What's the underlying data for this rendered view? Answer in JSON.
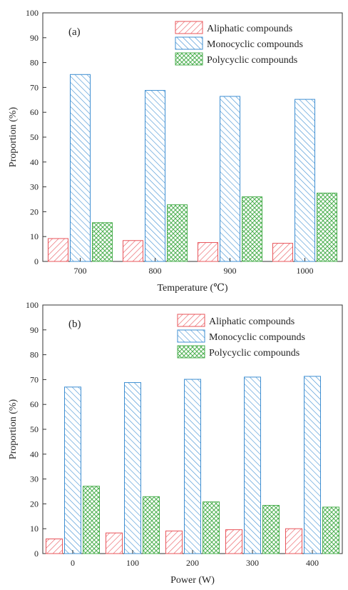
{
  "chart_data": [
    {
      "type": "bar",
      "panel_label": "(a)",
      "xlabel": "Temperature (℃)",
      "ylabel": "Proportion (%)",
      "ylim": [
        0,
        100
      ],
      "yticks": [
        0,
        10,
        20,
        30,
        40,
        50,
        60,
        70,
        80,
        90,
        100
      ],
      "categories": [
        "700",
        "800",
        "900",
        "1000"
      ],
      "legend_position": "top-right",
      "series": [
        {
          "name": "Aliphatic compounds",
          "color": "#e8545a",
          "hatch": "forward-diagonal",
          "values": [
            9.2,
            8.4,
            7.6,
            7.3
          ]
        },
        {
          "name": "Monocyclic compounds",
          "color": "#3f8fd2",
          "hatch": "back-diagonal",
          "values": [
            75.2,
            68.8,
            66.4,
            65.2
          ]
        },
        {
          "name": "Polycyclic compounds",
          "color": "#4caf50",
          "hatch": "crosshatch",
          "values": [
            15.6,
            22.8,
            26.0,
            27.5
          ]
        }
      ]
    },
    {
      "type": "bar",
      "panel_label": "(b)",
      "xlabel": "Power (W)",
      "ylabel": "Proportion (%)",
      "ylim": [
        0,
        100
      ],
      "yticks": [
        0,
        10,
        20,
        30,
        40,
        50,
        60,
        70,
        80,
        90,
        100
      ],
      "categories": [
        "0",
        "100",
        "200",
        "300",
        "400"
      ],
      "legend_position": "top-right",
      "series": [
        {
          "name": "Aliphatic compounds",
          "color": "#e8545a",
          "hatch": "forward-diagonal",
          "values": [
            5.9,
            8.3,
            9.1,
            9.6,
            10.0
          ]
        },
        {
          "name": "Monocyclic compounds",
          "color": "#3f8fd2",
          "hatch": "back-diagonal",
          "values": [
            67.0,
            68.8,
            70.1,
            71.0,
            71.3
          ]
        },
        {
          "name": "Polycyclic compounds",
          "color": "#4caf50",
          "hatch": "crosshatch",
          "values": [
            27.1,
            22.9,
            20.8,
            19.4,
            18.7
          ]
        }
      ]
    }
  ]
}
